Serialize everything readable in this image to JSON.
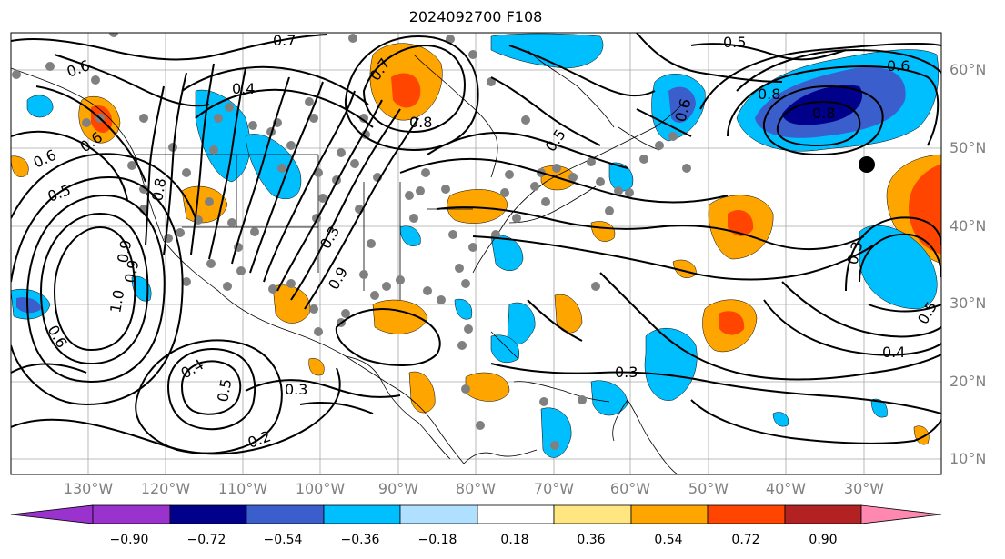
{
  "title": "2024092700 F108",
  "map": {
    "latitude_labels": [
      "60°N",
      "50°N",
      "40°N",
      "30°N",
      "20°N",
      "10°N"
    ],
    "longitude_labels": [
      "130°W",
      "120°W",
      "110°W",
      "100°W",
      "90°W",
      "80°W",
      "70°W",
      "60°W",
      "50°W",
      "40°W",
      "30°W"
    ],
    "contour_labels": [
      "0.7",
      "0.5",
      "0.6",
      "0.4",
      "0.6",
      "0.8",
      "0.6",
      "0.5",
      "0.8",
      "0.8",
      "0.7",
      "0.6",
      "0.6",
      "0.5",
      "0.8",
      "0.9",
      "0.9",
      "1.0",
      "0.6",
      "0.4",
      "0.5",
      "0.3",
      "0.2",
      "0.3",
      "0.3",
      "0.4",
      "0.5",
      "0.3",
      "0.9"
    ]
  },
  "colorbar": {
    "ticks": [
      "−0.90",
      "−0.72",
      "−0.54",
      "−0.36",
      "−0.18",
      "0.18",
      "0.36",
      "0.54",
      "0.72",
      "0.90"
    ],
    "colors": [
      "#9a32cd",
      "#00008b",
      "#3a5fcd",
      "#00bfff",
      "#b0e0ff",
      "#ffffff",
      "#ffe680",
      "#ffa500",
      "#ff4500",
      "#b22222",
      "#ff88b0"
    ]
  }
}
